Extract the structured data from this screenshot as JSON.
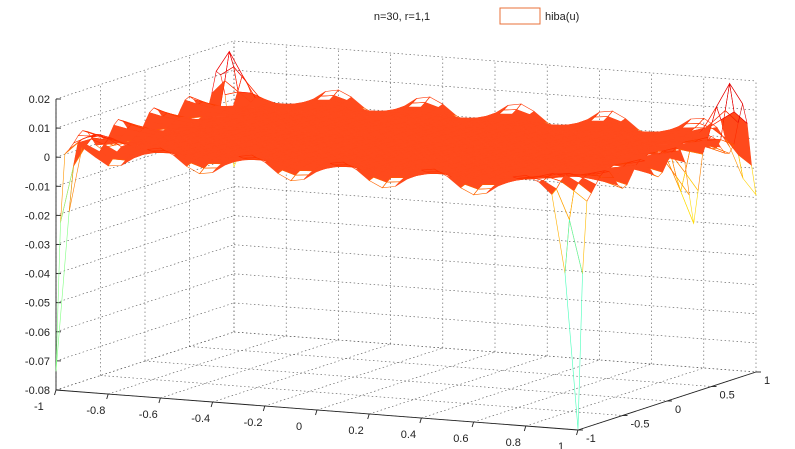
{
  "chart_data": {
    "type": "surface",
    "title": "n=30, r=1,1",
    "legend": {
      "position": "top-right",
      "entries": [
        {
          "name": "hiba(u)",
          "color": "#e8703a"
        }
      ]
    },
    "grid": true,
    "xlim": [
      -1,
      1
    ],
    "ylim": [
      -1,
      1
    ],
    "zlim": [
      -0.08,
      0.02
    ],
    "x_ticks": [
      "-1",
      "-0.8",
      "-0.6",
      "-0.4",
      "-0.2",
      "0",
      "0.2",
      "0.4",
      "0.6",
      "0.8",
      "1"
    ],
    "y_ticks": [
      "-1",
      "-0.5",
      "0",
      "0.5",
      "1"
    ],
    "z_ticks": [
      "-0.08",
      "-0.07",
      "-0.06",
      "-0.05",
      "-0.04",
      "-0.03",
      "-0.02",
      "-0.01",
      "0",
      "0.01",
      "0.02"
    ],
    "surface_color": "#ff4a1c",
    "colormap": "jet",
    "corner_values": [
      {
        "x": -1,
        "y": -1,
        "z": -0.078
      },
      {
        "x": 1,
        "y": -1,
        "z": -0.078
      },
      {
        "x": -1,
        "y": 1,
        "z": -0.025
      },
      {
        "x": 1,
        "y": 1,
        "z": -0.015
      }
    ]
  }
}
